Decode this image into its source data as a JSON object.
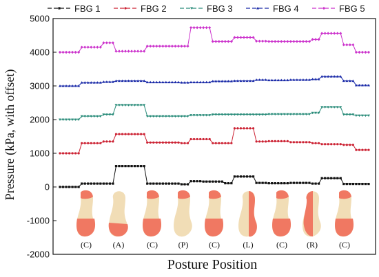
{
  "chart_data": {
    "type": "line",
    "title": "",
    "xlabel": "Posture Position",
    "ylabel": "Pressure (kPa, with offset)",
    "ylim": [
      -2000,
      5000
    ],
    "yticks": [
      "5000",
      "4000",
      "3000",
      "2000",
      "1000",
      "0",
      "-1000",
      "-2000"
    ],
    "x_count": 100,
    "legend_position": "top",
    "posture_labels": [
      "(C)",
      "(A)",
      "(C)",
      "(P)",
      "(C)",
      "(L)",
      "(C)",
      "(R)",
      "(C)"
    ],
    "series": [
      {
        "name": "FBG 1",
        "color": "#111111",
        "marker": "square",
        "segments": [
          [
            0,
            10,
            0
          ],
          [
            10,
            25,
            100
          ],
          [
            25,
            40,
            620
          ],
          [
            40,
            55,
            100
          ],
          [
            55,
            60,
            80
          ],
          [
            60,
            65,
            170
          ],
          [
            65,
            75,
            160
          ],
          [
            75,
            80,
            110
          ],
          [
            80,
            90,
            310
          ],
          [
            90,
            95,
            120
          ],
          [
            95,
            105,
            110
          ],
          [
            105,
            115,
            120
          ],
          [
            115,
            120,
            100
          ],
          [
            120,
            130,
            260
          ],
          [
            130,
            135,
            90
          ],
          [
            135,
            143,
            90
          ]
        ]
      },
      {
        "name": "FBG 2",
        "color": "#cc2233",
        "marker": "circle",
        "segments": [
          [
            0,
            10,
            1000
          ],
          [
            10,
            20,
            1300
          ],
          [
            20,
            25,
            1350
          ],
          [
            25,
            40,
            1570
          ],
          [
            40,
            55,
            1320
          ],
          [
            55,
            60,
            1300
          ],
          [
            60,
            70,
            1420
          ],
          [
            70,
            80,
            1300
          ],
          [
            80,
            90,
            1740
          ],
          [
            90,
            95,
            1350
          ],
          [
            95,
            105,
            1360
          ],
          [
            105,
            115,
            1330
          ],
          [
            115,
            120,
            1300
          ],
          [
            120,
            130,
            1270
          ],
          [
            130,
            135,
            1250
          ],
          [
            135,
            143,
            1100
          ]
        ]
      },
      {
        "name": "FBG 3",
        "color": "#2a8c7a",
        "marker": "triangle-down",
        "segments": [
          [
            0,
            10,
            2000
          ],
          [
            10,
            20,
            2100
          ],
          [
            20,
            25,
            2150
          ],
          [
            25,
            40,
            2430
          ],
          [
            40,
            55,
            2100
          ],
          [
            55,
            60,
            2100
          ],
          [
            60,
            70,
            2130
          ],
          [
            70,
            80,
            2150
          ],
          [
            80,
            90,
            2150
          ],
          [
            90,
            95,
            2150
          ],
          [
            95,
            105,
            2160
          ],
          [
            105,
            115,
            2160
          ],
          [
            115,
            120,
            2200
          ],
          [
            120,
            130,
            2370
          ],
          [
            130,
            135,
            2150
          ],
          [
            135,
            143,
            2120
          ]
        ]
      },
      {
        "name": "FBG 4",
        "color": "#1a2aa8",
        "marker": "triangle-up",
        "segments": [
          [
            0,
            10,
            3000
          ],
          [
            10,
            20,
            3100
          ],
          [
            20,
            25,
            3120
          ],
          [
            25,
            40,
            3150
          ],
          [
            40,
            55,
            3110
          ],
          [
            55,
            60,
            3100
          ],
          [
            60,
            70,
            3110
          ],
          [
            70,
            80,
            3140
          ],
          [
            80,
            90,
            3150
          ],
          [
            90,
            95,
            3180
          ],
          [
            95,
            105,
            3170
          ],
          [
            105,
            115,
            3180
          ],
          [
            115,
            120,
            3200
          ],
          [
            120,
            130,
            3280
          ],
          [
            130,
            135,
            3150
          ],
          [
            135,
            143,
            3020
          ]
        ]
      },
      {
        "name": "FBG 5",
        "color": "#cc33cc",
        "marker": "diamond",
        "segments": [
          [
            0,
            10,
            4000
          ],
          [
            10,
            20,
            4150
          ],
          [
            20,
            25,
            4280
          ],
          [
            25,
            40,
            4030
          ],
          [
            40,
            55,
            4180
          ],
          [
            55,
            60,
            4180
          ],
          [
            60,
            70,
            4730
          ],
          [
            70,
            80,
            4320
          ],
          [
            80,
            90,
            4440
          ],
          [
            90,
            95,
            4330
          ],
          [
            95,
            105,
            4320
          ],
          [
            105,
            115,
            4320
          ],
          [
            115,
            120,
            4380
          ],
          [
            120,
            130,
            4560
          ],
          [
            130,
            135,
            4220
          ],
          [
            135,
            143,
            4000
          ]
        ]
      }
    ]
  }
}
